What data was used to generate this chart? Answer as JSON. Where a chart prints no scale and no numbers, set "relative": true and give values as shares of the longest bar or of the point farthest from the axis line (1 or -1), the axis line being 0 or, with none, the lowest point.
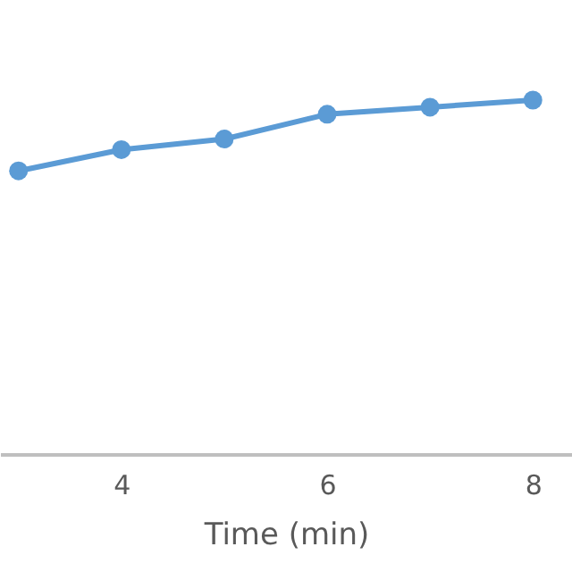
{
  "chart_data": {
    "type": "line",
    "xlabel": "Time (min)",
    "relative": true,
    "x": [
      3,
      4,
      5,
      6,
      7,
      8
    ],
    "series": [
      {
        "color": "#5b9bd5",
        "values": [
          0.8,
          0.86,
          0.89,
          0.96,
          0.98,
          1
        ]
      }
    ],
    "xlim": [
      2.82,
      8.38
    ],
    "xticks": [
      4,
      6,
      8
    ],
    "marker": "circle",
    "grid": false
  }
}
